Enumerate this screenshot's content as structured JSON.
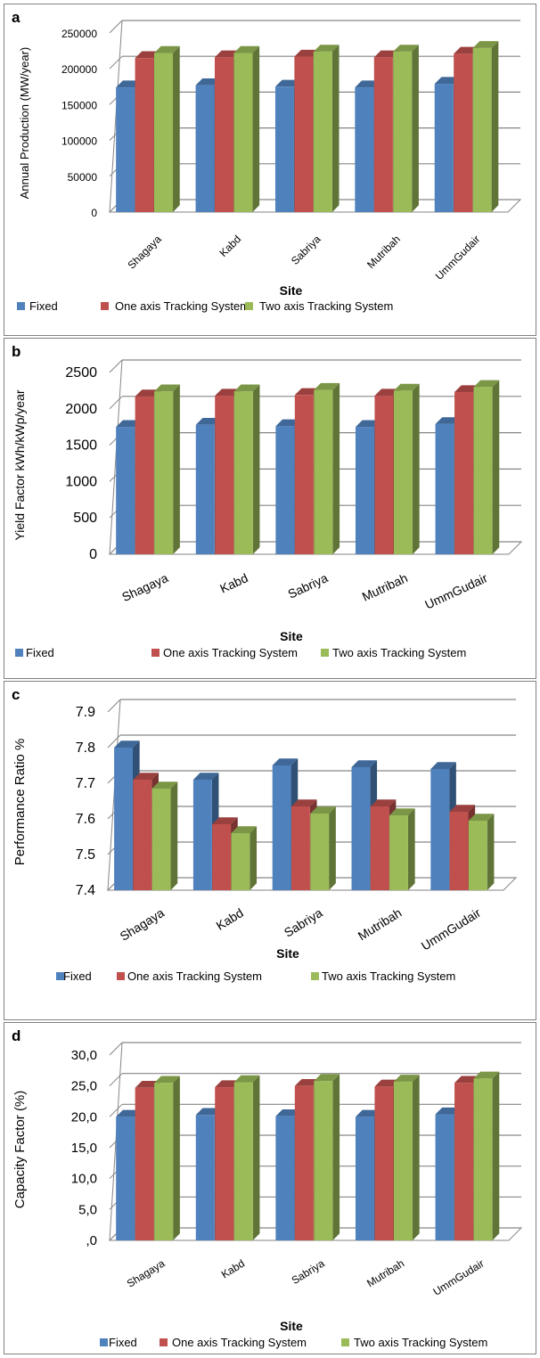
{
  "colors": {
    "fixed": "#4f81bd",
    "one_axis": "#c0504d",
    "two_axis": "#9bbb59",
    "grid": "#868686"
  },
  "legend": [
    "Fixed",
    "One axis Tracking System",
    "Two axis Tracking System"
  ],
  "chart_data": [
    {
      "type": "bar",
      "panel_label": "a",
      "ylabel": "Annual Production (MW/year)",
      "xlabel": "Site",
      "categories": [
        "Shagaya",
        "Kabd",
        "Sabriya",
        "Mutribah",
        "UmmGudair"
      ],
      "ylim": [
        0,
        250000
      ],
      "yticks": [
        "0",
        "50000",
        "100000",
        "150000",
        "200000",
        "250000"
      ],
      "grid": true,
      "legend_position": "bottom",
      "series": [
        {
          "name": "Fixed",
          "values": [
            174000,
            177000,
            175000,
            174000,
            179000
          ]
        },
        {
          "name": "One axis Tracking System",
          "values": [
            215000,
            216000,
            217000,
            216000,
            221000
          ]
        },
        {
          "name": "Two axis Tracking System",
          "values": [
            222000,
            222000,
            224000,
            224000,
            229000
          ]
        }
      ]
    },
    {
      "type": "bar",
      "panel_label": "b",
      "ylabel": "Yield Factor kWh/kWp/year",
      "xlabel": "Site",
      "categories": [
        "Shagaya",
        "Kabd",
        "Sabriya",
        "Mutribah",
        "UmmGudair"
      ],
      "ylim": [
        0,
        2500
      ],
      "yticks": [
        "0",
        "500",
        "1000",
        "1500",
        "2000",
        "2500"
      ],
      "grid": true,
      "legend_position": "bottom",
      "series": [
        {
          "name": "Fixed",
          "values": [
            1750,
            1780,
            1760,
            1750,
            1790
          ]
        },
        {
          "name": "One axis Tracking System",
          "values": [
            2170,
            2180,
            2190,
            2180,
            2230
          ]
        },
        {
          "name": "Two axis Tracking System",
          "values": [
            2240,
            2240,
            2260,
            2250,
            2300
          ]
        }
      ]
    },
    {
      "type": "bar",
      "panel_label": "c",
      "ylabel": "Performance Ratio %",
      "xlabel": "Site",
      "categories": [
        "Shagaya",
        "Kabd",
        "Sabriya",
        "Mutribah",
        "UmmGudair"
      ],
      "ylim": [
        7.4,
        7.9
      ],
      "yticks": [
        "7.4",
        "7.5",
        "7.6",
        "7.7",
        "7.8",
        "7.9"
      ],
      "grid": true,
      "legend_position": "bottom",
      "series": [
        {
          "name": "Fixed",
          "values": [
            7.8,
            7.71,
            7.75,
            7.745,
            7.74
          ]
        },
        {
          "name": "One axis Tracking System",
          "values": [
            7.71,
            7.585,
            7.635,
            7.635,
            7.62
          ]
        },
        {
          "name": "Two axis Tracking System",
          "values": [
            7.685,
            7.56,
            7.615,
            7.61,
            7.595
          ]
        }
      ]
    },
    {
      "type": "bar",
      "panel_label": "d",
      "ylabel": "Capacity Factor  (%)",
      "xlabel": "Site",
      "categories": [
        "Shagaya",
        "Kabd",
        "Sabriya",
        "Mutribah",
        "UmmGudair"
      ],
      "ylim": [
        0,
        30
      ],
      "yticks": [
        ",0",
        "5,0",
        "10,0",
        "15,0",
        "20,0",
        "25,0",
        "30,0"
      ],
      "grid": true,
      "legend_position": "bottom",
      "series": [
        {
          "name": "Fixed",
          "values": [
            20.0,
            20.3,
            20.1,
            20.0,
            20.4
          ]
        },
        {
          "name": "One axis Tracking System",
          "values": [
            24.7,
            24.8,
            25.0,
            24.9,
            25.5
          ]
        },
        {
          "name": "Two axis Tracking System",
          "values": [
            25.5,
            25.6,
            25.8,
            25.7,
            26.2
          ]
        }
      ]
    }
  ]
}
